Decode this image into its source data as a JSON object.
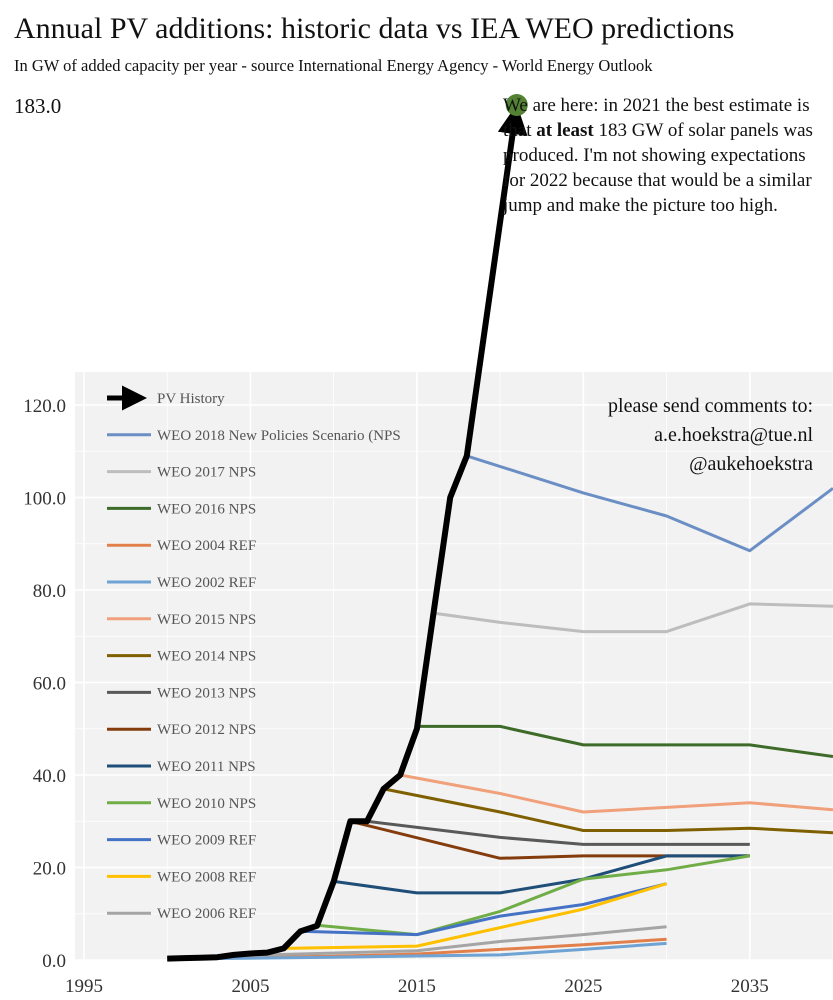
{
  "title": "Annual PV additions: historic data vs IEA WEO predictions",
  "subtitle": "In GW of added capacity per year - source International Energy Agency - World Energy Outlook",
  "callout": {
    "part1": "We are here: in 2021 the best estimate is that ",
    "bold": "at least",
    "part2": " 183 GW of solar panels was produced. I'm not showing expectations for 2022 because that would be a similar jump and make the picture too high."
  },
  "contact": {
    "line1": "please send comments to:",
    "line2": "a.e.hoekstra@tue.nl",
    "line3": "@aukehoekstra"
  },
  "colors": {
    "history": "#000000",
    "marker": "#548235",
    "plot_background": "#f2f2f2"
  },
  "chart_data": {
    "type": "line",
    "xlim": [
      1995,
      2040
    ],
    "ylim": [
      0,
      120
    ],
    "x_ticks": [
      "1995",
      "2005",
      "2015",
      "2025",
      "2035"
    ],
    "y_ticks": [
      "0.0",
      "20.0",
      "40.0",
      "60.0",
      "80.0",
      "100.0",
      "120.0"
    ],
    "top_label": "183.0",
    "grid": true,
    "legend_position": "left",
    "history": {
      "name": "PV History",
      "color": "#000000",
      "points": [
        [
          2000,
          0.3
        ],
        [
          2001,
          0.4
        ],
        [
          2002,
          0.5
        ],
        [
          2003,
          0.6
        ],
        [
          2004,
          1.1
        ],
        [
          2005,
          1.4
        ],
        [
          2006,
          1.6
        ],
        [
          2007,
          2.5
        ],
        [
          2008,
          6.2
        ],
        [
          2009,
          7.4
        ],
        [
          2010,
          17
        ],
        [
          2011,
          30
        ],
        [
          2012,
          30
        ],
        [
          2013,
          37
        ],
        [
          2014,
          40
        ],
        [
          2015,
          50
        ],
        [
          2016,
          75
        ],
        [
          2017,
          100
        ],
        [
          2018,
          109
        ],
        [
          2021,
          183
        ]
      ]
    },
    "series": [
      {
        "name": "WEO 2018 New Policies Scenario (NPS",
        "color": "#6b8fc4",
        "points": [
          [
            2018,
            109
          ],
          [
            2025,
            101
          ],
          [
            2030,
            96
          ],
          [
            2035,
            88.5
          ],
          [
            2040,
            102
          ]
        ]
      },
      {
        "name": "WEO 2017 NPS",
        "color": "#bdbdbd",
        "points": [
          [
            2016,
            75
          ],
          [
            2020,
            73
          ],
          [
            2025,
            71
          ],
          [
            2030,
            71
          ],
          [
            2035,
            77
          ],
          [
            2040,
            76.5
          ]
        ]
      },
      {
        "name": "WEO 2016 NPS",
        "color": "#3e6b29",
        "points": [
          [
            2015,
            50.5
          ],
          [
            2020,
            50.5
          ],
          [
            2025,
            46.5
          ],
          [
            2030,
            46.5
          ],
          [
            2035,
            46.5
          ],
          [
            2040,
            44
          ]
        ]
      },
      {
        "name": "WEO 2004 REF",
        "color": "#e2804c",
        "points": [
          [
            2002,
            0.4
          ],
          [
            2010,
            0.8
          ],
          [
            2015,
            1.3
          ],
          [
            2020,
            2.3
          ],
          [
            2025,
            3.3
          ],
          [
            2030,
            4.5
          ]
        ]
      },
      {
        "name": "WEO 2002 REF",
        "color": "#6ea3d4",
        "points": [
          [
            2000,
            0.2
          ],
          [
            2010,
            0.6
          ],
          [
            2020,
            1.1
          ],
          [
            2025,
            2.3
          ],
          [
            2030,
            3.6
          ]
        ]
      },
      {
        "name": "WEO 2015 NPS",
        "color": "#f0a07a",
        "points": [
          [
            2014,
            40
          ],
          [
            2020,
            36
          ],
          [
            2025,
            32
          ],
          [
            2030,
            33
          ],
          [
            2035,
            34
          ],
          [
            2040,
            32.5
          ]
        ]
      },
      {
        "name": "WEO 2014 NPS",
        "color": "#7f6000",
        "points": [
          [
            2013,
            37
          ],
          [
            2020,
            32
          ],
          [
            2025,
            28
          ],
          [
            2030,
            28
          ],
          [
            2035,
            28.5
          ],
          [
            2040,
            27.5
          ]
        ]
      },
      {
        "name": "WEO 2013 NPS",
        "color": "#595959",
        "points": [
          [
            2012,
            30
          ],
          [
            2020,
            26.5
          ],
          [
            2025,
            25
          ],
          [
            2030,
            25
          ],
          [
            2035,
            25
          ]
        ]
      },
      {
        "name": "WEO 2012 NPS",
        "color": "#843c0c",
        "points": [
          [
            2011,
            30
          ],
          [
            2020,
            22
          ],
          [
            2025,
            22.5
          ],
          [
            2030,
            22.5
          ],
          [
            2035,
            22.5
          ]
        ]
      },
      {
        "name": "WEO 2011 NPS",
        "color": "#1f4e79",
        "points": [
          [
            2010,
            17
          ],
          [
            2015,
            14.5
          ],
          [
            2020,
            14.5
          ],
          [
            2025,
            17.5
          ],
          [
            2030,
            22.5
          ],
          [
            2035,
            22.5
          ]
        ]
      },
      {
        "name": "WEO 2010 NPS",
        "color": "#70ad47",
        "points": [
          [
            2009,
            7.5
          ],
          [
            2015,
            5.5
          ],
          [
            2020,
            10.5
          ],
          [
            2025,
            17.5
          ],
          [
            2030,
            19.5
          ],
          [
            2035,
            22.5
          ]
        ]
      },
      {
        "name": "WEO 2009 REF",
        "color": "#4472c4",
        "points": [
          [
            2008,
            6.2
          ],
          [
            2015,
            5.5
          ],
          [
            2020,
            9.5
          ],
          [
            2025,
            12
          ],
          [
            2030,
            16.5
          ]
        ]
      },
      {
        "name": "WEO 2008 REF",
        "color": "#ffc000",
        "points": [
          [
            2007,
            2.5
          ],
          [
            2015,
            3
          ],
          [
            2020,
            7
          ],
          [
            2025,
            11
          ],
          [
            2030,
            16.5
          ]
        ]
      },
      {
        "name": "WEO 2006 REF",
        "color": "#a5a5a5",
        "points": [
          [
            2005,
            1
          ],
          [
            2015,
            2
          ],
          [
            2020,
            4
          ],
          [
            2025,
            5.5
          ],
          [
            2030,
            7.2
          ]
        ]
      }
    ]
  }
}
